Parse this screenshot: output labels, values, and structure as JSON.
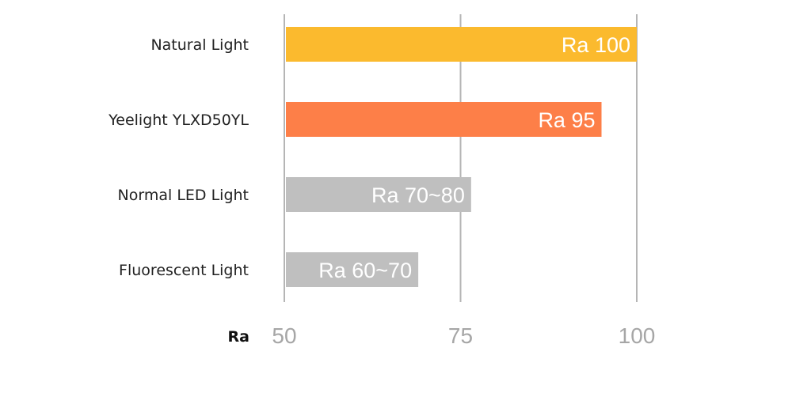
{
  "chart_data": {
    "type": "bar",
    "orientation": "horizontal",
    "categories": [
      "Natural Light",
      "Yeelight YLXD50YL",
      "Normal LED Light",
      "Fluorescent Light"
    ],
    "values": [
      100,
      95,
      76.5,
      69
    ],
    "bar_labels": [
      "Ra 100",
      "Ra 95",
      "Ra 70~80",
      "Ra 60~70"
    ],
    "colors": [
      "#fbba2e",
      "#fd7f48",
      "#bfbfbf",
      "#bfbfbf"
    ],
    "xlabel": "Ra",
    "xlim": [
      50,
      100
    ],
    "xticks": [
      50,
      75,
      100
    ],
    "xtick_labels": [
      "50",
      "75",
      "100"
    ],
    "grid": true
  }
}
